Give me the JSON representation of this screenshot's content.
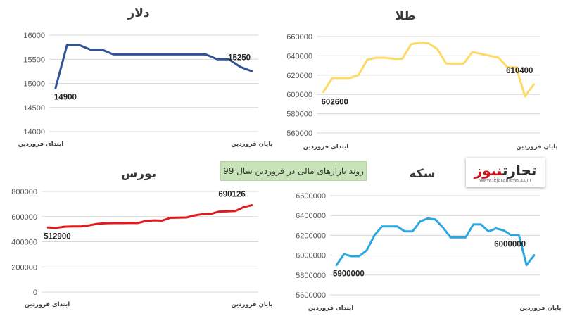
{
  "caption": "روند بازارهای مالی در فروردین سال 99",
  "logo": {
    "part_a": "تجارت",
    "part_b": "نیوز",
    "url": "www.tejaratnews.com"
  },
  "colors": {
    "dollar": "#2f5597",
    "gold": "#ffd966",
    "bourse": "#e31a1c",
    "coin": "#2ba6de",
    "grid": "#d9d9d9"
  },
  "chart_data": [
    {
      "id": "dollar",
      "type": "line",
      "title": "دلار",
      "x_labels": {
        "start": "ابتدای فروردین",
        "end": "پایان فروردین"
      },
      "y_ticks": [
        "16000",
        "15500",
        "15000",
        "14500",
        "14000"
      ],
      "ylim": [
        14000,
        16000
      ],
      "values": [
        14900,
        15800,
        15800,
        15700,
        15700,
        15600,
        15600,
        15600,
        15600,
        15600,
        15600,
        15600,
        15600,
        15600,
        15500,
        15500,
        15340,
        15250
      ],
      "labels": {
        "first": "14900",
        "last": "15250"
      },
      "grid": true
    },
    {
      "id": "gold",
      "type": "line",
      "title": "طلا",
      "x_labels": {
        "start": "ابتدای فروردین",
        "end": "پایان فروردین"
      },
      "y_ticks": [
        "660000",
        "640000",
        "620000",
        "600000",
        "580000",
        "560000"
      ],
      "ylim": [
        560000,
        660000
      ],
      "values": [
        602600,
        617000,
        617000,
        617000,
        620000,
        636000,
        638000,
        638000,
        637000,
        637000,
        652000,
        654000,
        653000,
        647000,
        632000,
        632000,
        632000,
        644000,
        642000,
        640000,
        638000,
        628000,
        628000,
        598000,
        610400
      ],
      "labels": {
        "first": "602600",
        "last": "610400"
      },
      "grid": true
    },
    {
      "id": "bourse",
      "type": "line",
      "title": "بورس",
      "x_labels": {
        "start": "ابتدای فروردین",
        "end": "پایان فروردین"
      },
      "y_ticks": [
        "800000",
        "600000",
        "400000",
        "200000",
        "0"
      ],
      "ylim": [
        0,
        800000
      ],
      "values": [
        512900,
        510000,
        520000,
        522000,
        522000,
        530000,
        542000,
        547000,
        548000,
        548000,
        549000,
        549000,
        565000,
        570000,
        568000,
        590000,
        592000,
        593000,
        610000,
        620000,
        622000,
        640000,
        642000,
        645000,
        675000,
        690126
      ],
      "labels": {
        "first": "512900",
        "last": "690126"
      },
      "grid": true
    },
    {
      "id": "coin",
      "type": "line",
      "title": "سکه",
      "x_labels": {
        "start": "ابتدای فروردین",
        "end": "پایان فروردین"
      },
      "y_ticks": [
        "6600000",
        "6400000",
        "6200000",
        "6000000",
        "5800000",
        "5600000"
      ],
      "ylim": [
        5600000,
        6600000
      ],
      "values": [
        5900000,
        6010000,
        5990000,
        5990000,
        6050000,
        6200000,
        6290000,
        6290000,
        6290000,
        6240000,
        6240000,
        6340000,
        6370000,
        6360000,
        6280000,
        6180000,
        6180000,
        6180000,
        6310000,
        6310000,
        6240000,
        6270000,
        6250000,
        6200000,
        6200000,
        5900000,
        6000000
      ],
      "labels": {
        "first": "5900000",
        "last": "6000000"
      },
      "grid": true
    }
  ]
}
